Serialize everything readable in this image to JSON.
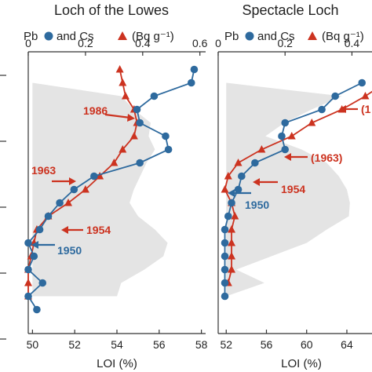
{
  "colors": {
    "pb": "#2e6a9e",
    "cs": "#cc3320",
    "loi_fill": "#e4e4e4",
    "axis": "#333333"
  },
  "chart_data": [
    {
      "type": "line",
      "title": "Loch of the Lowes",
      "legend": {
        "pb_label": "Pb",
        "and_label": "and Cs",
        "unit_label": "(Bq g⁻¹)"
      },
      "top_axis": {
        "ticks": [
          0,
          0.2,
          0.4,
          0.6
        ],
        "labels": [
          "0",
          "0.2",
          "0.4",
          "0.6"
        ],
        "range": [
          0,
          0.62
        ]
      },
      "bottom_axis": {
        "label": "LOI (%)",
        "ticks": [
          50,
          52,
          54,
          56,
          58
        ],
        "labels": [
          "50",
          "52",
          "54",
          "56",
          "58"
        ],
        "range": [
          49.8,
          58.2
        ]
      },
      "depth_range": [
        0,
        40
      ],
      "y_ticks": [
        0,
        10,
        20,
        30,
        40
      ],
      "loi": {
        "depth": [
          3,
          5,
          7,
          9,
          11,
          13,
          15,
          17,
          19,
          21,
          23,
          25,
          27,
          29,
          31,
          33,
          35
        ],
        "values": [
          50.0,
          54.2,
          54.8,
          55.6,
          55.5,
          55.8,
          55.4,
          55.1,
          54.8,
          54.6,
          55.0,
          55.8,
          56.4,
          56.2,
          55.3,
          54.2,
          54.0
        ]
      },
      "series": [
        {
          "name": "Pb",
          "x": [
            0.58,
            0.57,
            0.44,
            0.38,
            0.39,
            0.48,
            0.49,
            0.39,
            0.23,
            0.16,
            0.11,
            0.07,
            0.04,
            0.0,
            0.02,
            0.0,
            0.05,
            0.0,
            0.03
          ],
          "y": [
            1,
            3,
            5,
            7,
            9,
            11,
            13,
            15,
            17,
            19,
            21,
            23,
            25,
            27,
            29,
            31,
            33,
            35,
            37
          ]
        },
        {
          "name": "Cs",
          "x": [
            0.32,
            0.33,
            0.34,
            0.37,
            0.38,
            0.37,
            0.33,
            0.3,
            0.25,
            0.2,
            0.14,
            0.07,
            0.03,
            0.02,
            0.01,
            0.0,
            0.0,
            0.0
          ],
          "y": [
            1,
            3,
            5,
            7,
            9,
            11,
            13,
            15,
            17,
            19,
            21,
            23,
            25,
            27,
            29,
            31,
            33,
            35
          ]
        }
      ],
      "annotations": [
        {
          "text": "1986",
          "series": "Cs"
        },
        {
          "text": "1963",
          "series": "Cs"
        },
        {
          "text": "1954",
          "series": "Cs"
        },
        {
          "text": "1950",
          "series": "Pb"
        }
      ]
    },
    {
      "type": "line",
      "title": "Spectacle Loch",
      "legend": {
        "pb_label": "Pb",
        "and_label": "and Cs",
        "unit_label": "(Bq g⁻¹)"
      },
      "top_axis": {
        "ticks": [
          0,
          0.2,
          0.4
        ],
        "labels": [
          "0",
          "0.2",
          "0.4"
        ],
        "range": [
          0,
          0.46
        ]
      },
      "bottom_axis": {
        "label": "LOI (%)",
        "ticks": [
          52,
          56,
          60,
          64
        ],
        "labels": [
          "52",
          "56",
          "60",
          "64"
        ],
        "range": [
          51.2,
          66.5
        ]
      },
      "depth_range": [
        0,
        40
      ],
      "loi": {
        "depth": [
          3,
          5,
          7,
          9,
          11,
          13,
          15,
          17,
          19,
          21,
          23,
          25,
          27,
          29,
          31,
          33,
          35
        ],
        "values": [
          52.0,
          63.5,
          60.5,
          57.8,
          55.9,
          59.5,
          62.0,
          63.2,
          64.0,
          64.3,
          64.2,
          62.0,
          60.0,
          56.5,
          53.0,
          55.8,
          52.0
        ]
      },
      "series": [
        {
          "name": "Pb",
          "x": [
            0.43,
            0.35,
            0.31,
            0.2,
            0.19,
            0.2,
            0.11,
            0.07,
            0.06,
            0.04,
            0.03,
            0.02,
            0.02,
            0.02,
            0.02,
            0.02,
            0.02
          ],
          "y": [
            3,
            5,
            7,
            9,
            11,
            13,
            15,
            17,
            19,
            21,
            23,
            25,
            27,
            29,
            31,
            33,
            35
          ]
        },
        {
          "name": "Cs",
          "x": [
            0.5,
            0.44,
            0.37,
            0.28,
            0.22,
            0.13,
            0.06,
            0.03,
            0.02,
            0.04,
            0.05,
            0.04,
            0.04,
            0.04,
            0.04,
            0.03
          ],
          "y": [
            3,
            5,
            7,
            9,
            11,
            13,
            15,
            17,
            19,
            21,
            23,
            25,
            27,
            29,
            31,
            33
          ]
        }
      ],
      "annotations": [
        {
          "text": "(1",
          "series": "Cs"
        },
        {
          "text": "(1963)",
          "series": "Cs"
        },
        {
          "text": "1954",
          "series": "Cs"
        },
        {
          "text": "1950",
          "series": "Pb"
        }
      ]
    }
  ]
}
